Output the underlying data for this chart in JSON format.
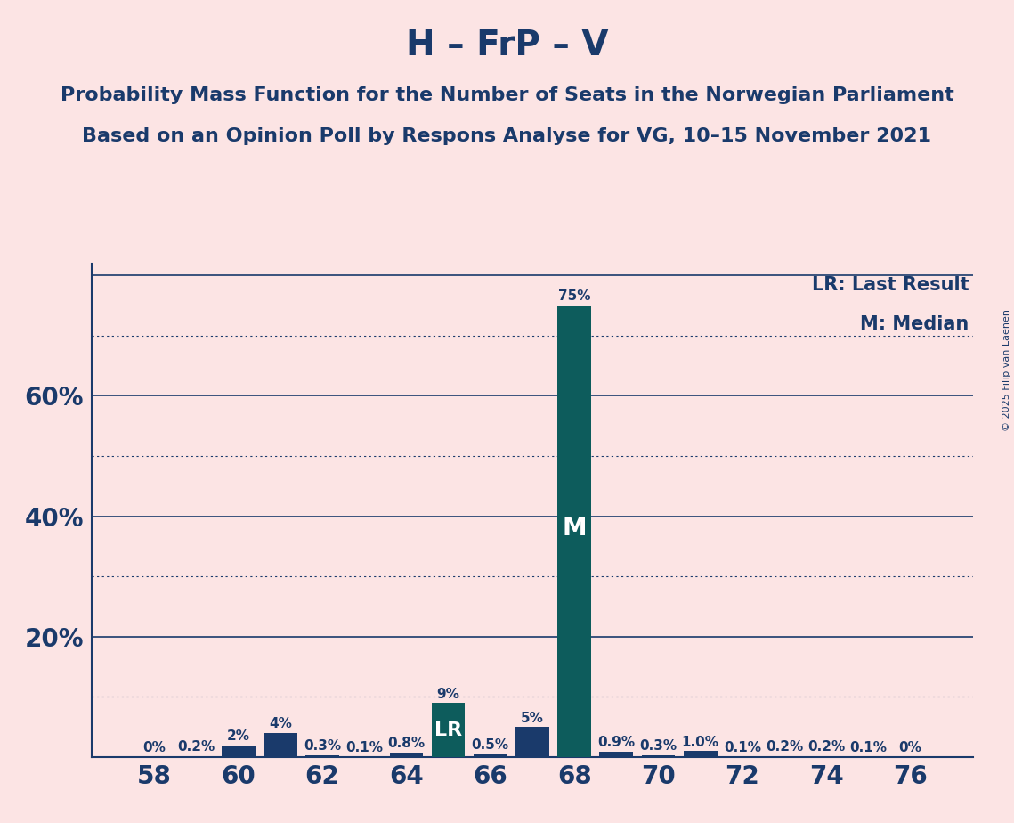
{
  "title": "H – FrP – V",
  "subtitle1": "Probability Mass Function for the Number of Seats in the Norwegian Parliament",
  "subtitle2": "Based on an Opinion Poll by Respons Analyse for VG, 10–15 November 2021",
  "copyright": "© 2025 Filip van Laenen",
  "legend_lr": "LR: Last Result",
  "legend_m": "M: Median",
  "background_color": "#fce4e4",
  "bar_color_blue": "#1a3a6b",
  "bar_color_teal": "#0d5c5c",
  "title_color": "#1a3a6b",
  "seats": [
    58,
    59,
    60,
    61,
    62,
    63,
    64,
    65,
    66,
    67,
    68,
    69,
    70,
    71,
    72,
    73,
    74,
    75,
    76
  ],
  "probabilities": [
    0.0,
    0.2,
    2.0,
    4.0,
    0.3,
    0.1,
    0.8,
    9.0,
    0.5,
    5.0,
    75.0,
    0.9,
    0.3,
    1.0,
    0.1,
    0.2,
    0.2,
    0.1,
    0.0
  ],
  "labels": [
    "0%",
    "0.2%",
    "2%",
    "4%",
    "0.3%",
    "0.1%",
    "0.8%",
    "9%",
    "0.5%",
    "5%",
    "75%",
    "0.9%",
    "0.3%",
    "1.0%",
    "0.1%",
    "0.2%",
    "0.2%",
    "0.1%",
    "0%"
  ],
  "lr_seat": 65,
  "median_seat": 68,
  "solid_lines": [
    20,
    40,
    60,
    80
  ],
  "dotted_lines": [
    10,
    30,
    50,
    70
  ],
  "xlim": [
    56.5,
    77.5
  ],
  "ylim": [
    0,
    82
  ]
}
